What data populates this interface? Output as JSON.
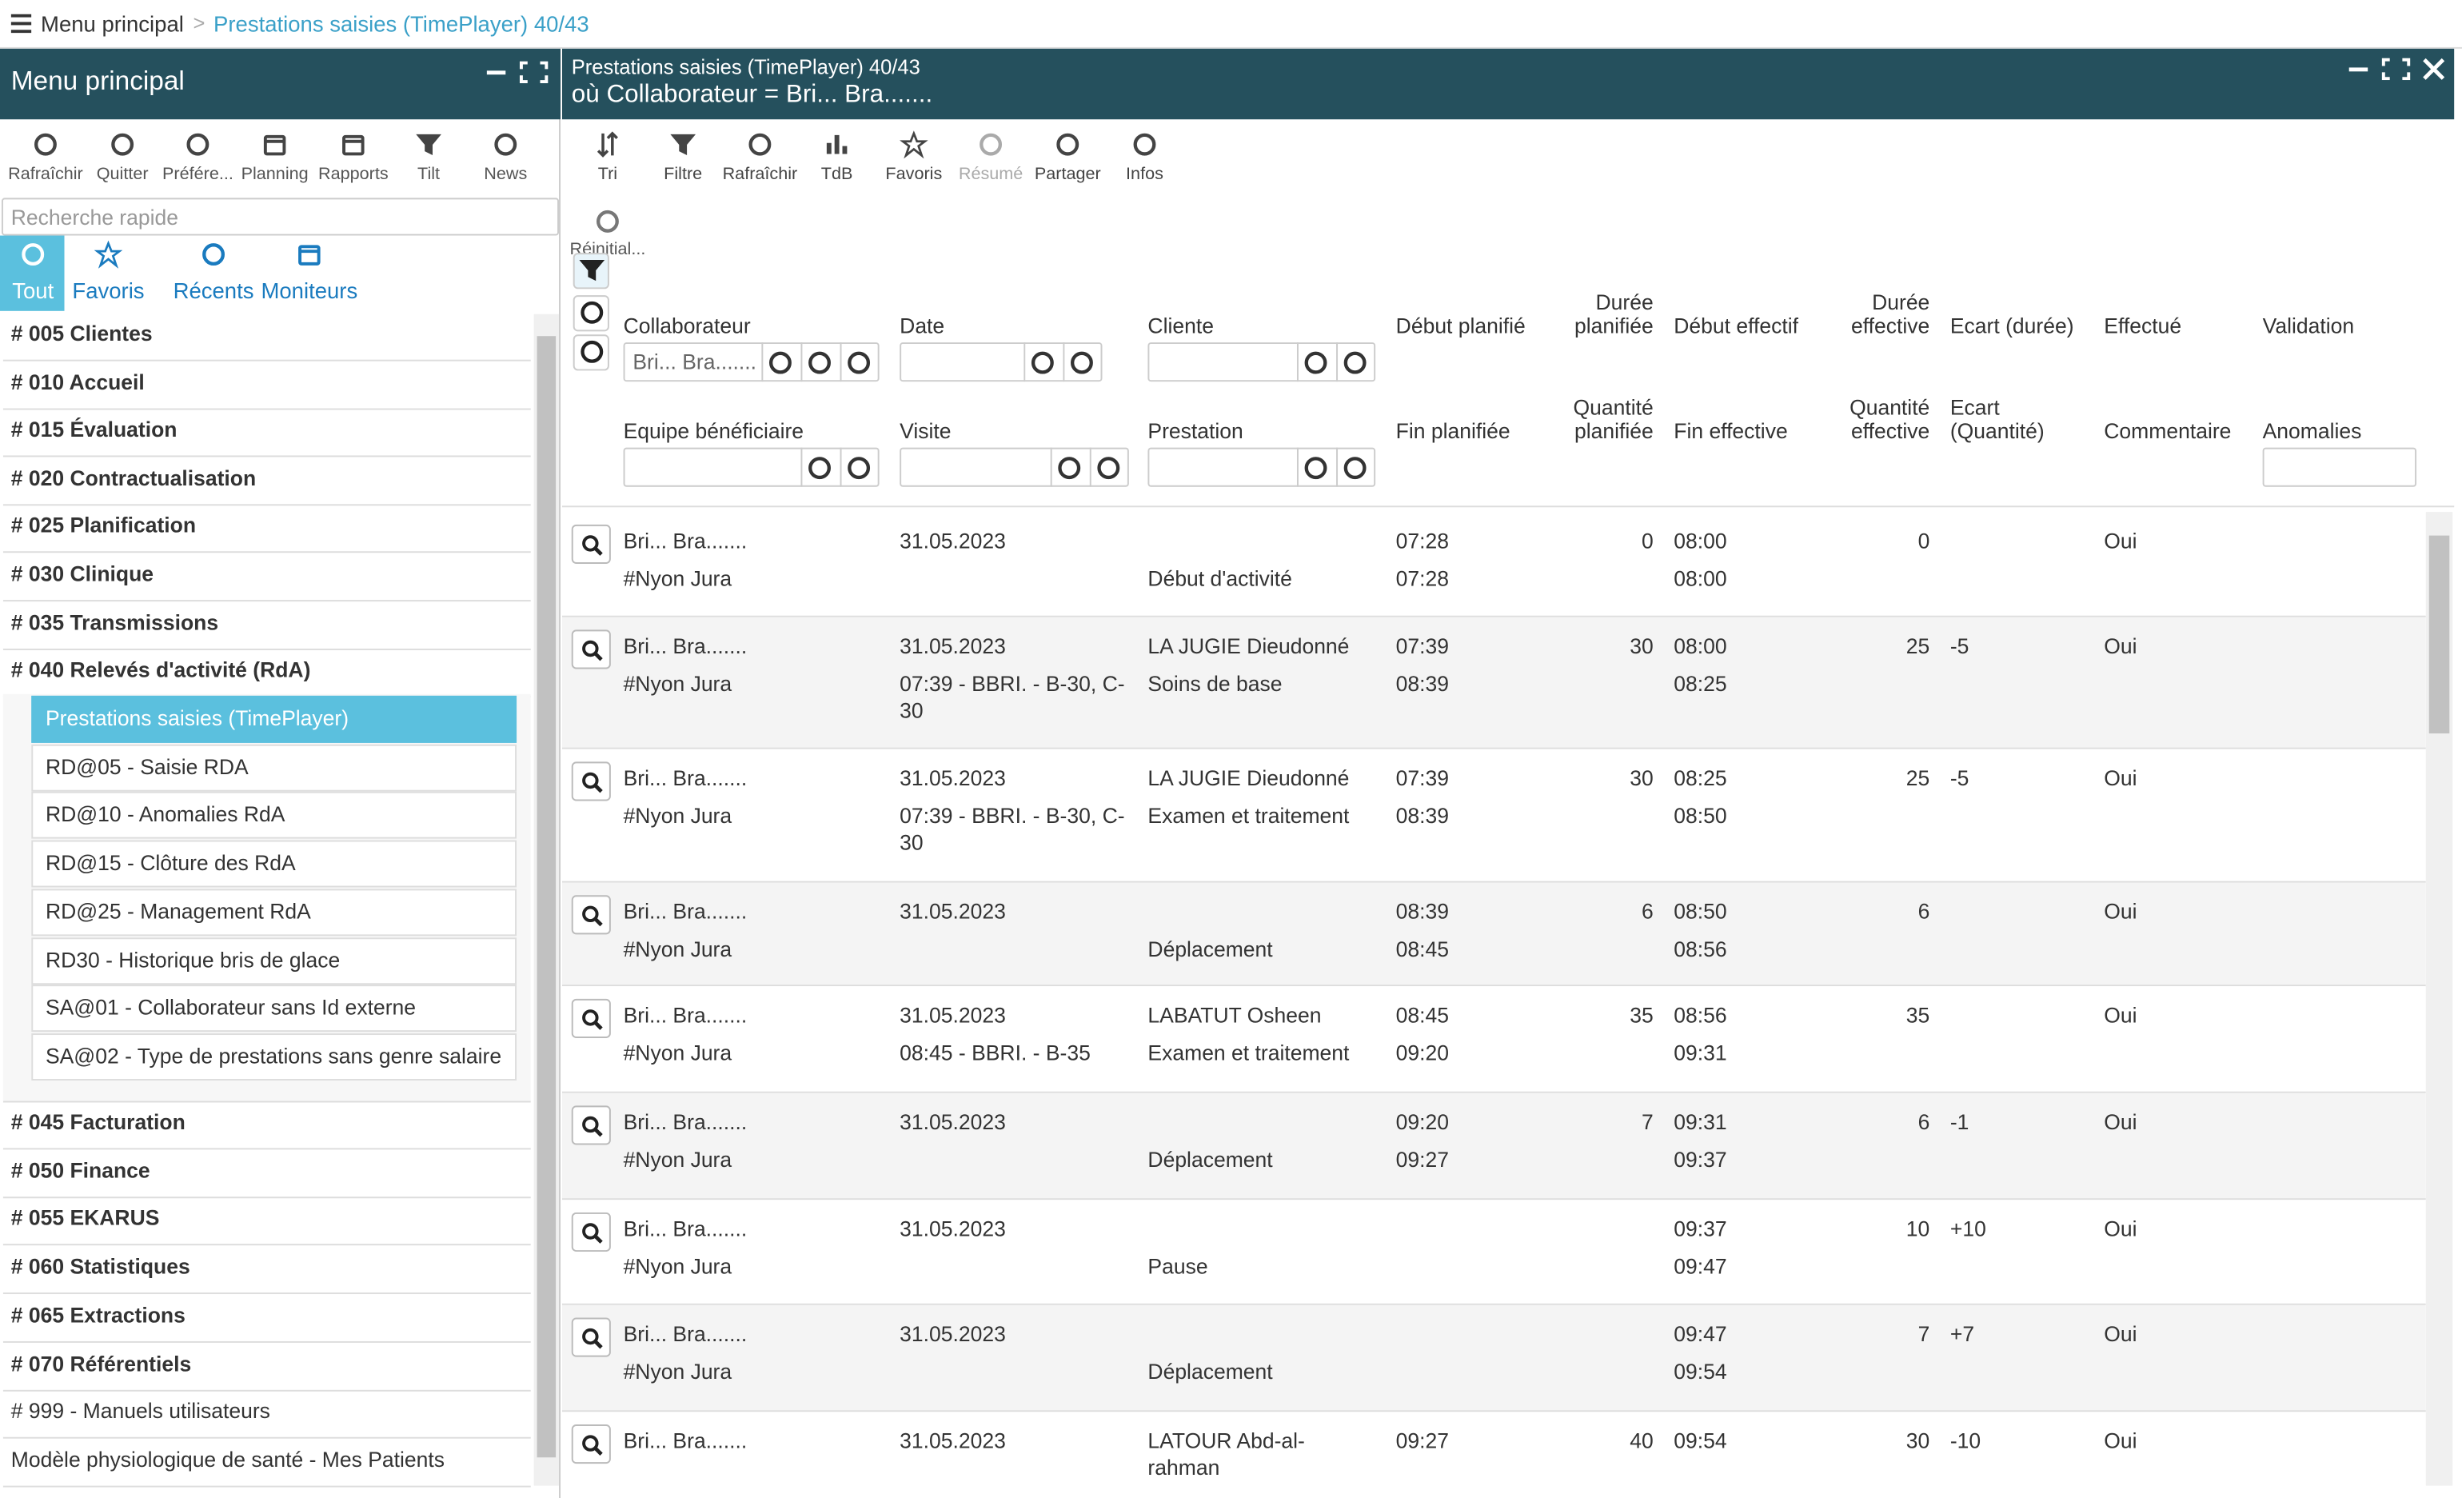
{
  "breadcrumb": {
    "root": "Menu principal",
    "separator": ">",
    "current": "Prestations saisies (TimePlayer) 40/43"
  },
  "menu_panel": {
    "title": "Menu principal",
    "toolbar": [
      "Rafraîchir",
      "Quitter",
      "Préfére...",
      "Planning",
      "Rapports",
      "Tilt",
      "News"
    ],
    "search_placeholder": "Recherche rapide",
    "tabs": [
      "Tout",
      "Favoris",
      "Récents",
      "Moniteurs"
    ],
    "sections": [
      "# 005 Clientes",
      "# 010 Accueil",
      "# 015 Évaluation",
      "# 020 Contractualisation",
      "# 025 Planification",
      "# 030 Clinique",
      "# 035 Transmissions",
      "# 040 Relevés d'activité (RdA)"
    ],
    "subitems": [
      "Prestations saisies (TimePlayer)",
      "RD@05 - Saisie RDA",
      "RD@10 - Anomalies RdA",
      "RD@15 - Clôture des RdA",
      "RD@25 - Management RdA",
      "RD30 - Historique bris de glace",
      "SA@01 - Collaborateur sans Id externe",
      "SA@02 - Type de prestations sans genre salaire"
    ],
    "more_sections": [
      "# 045 Facturation",
      "# 050 Finance",
      "# 055 EKARUS",
      "# 060 Statistiques",
      "# 065 Extractions",
      "# 070 Référentiels",
      "# 999 - Manuels utilisateurs",
      "Modèle physiologique de santé - Mes Patients"
    ]
  },
  "list_panel": {
    "title": "Prestations saisies (TimePlayer) 40/43",
    "filter_summary": "où Collaborateur = Bri... Bra.......",
    "toolbar": [
      "Tri",
      "Filtre",
      "Rafraîchir",
      "TdB",
      "Favoris",
      "Résumé",
      "Partager",
      "Infos"
    ],
    "reset": "Réinitial...",
    "header_top": [
      "Collaborateur",
      "Date",
      "Cliente",
      "Début planifié",
      "Durée planifiée",
      "Début effectif",
      "Durée effective",
      "Ecart (durée)",
      "Effectué",
      "Validation"
    ],
    "header_bottom": [
      "Equipe bénéficiaire",
      "Visite",
      "Prestation",
      "Fin planifiée",
      "Quantité planifiée",
      "Fin effective",
      "Quantité effective",
      "Ecart (Quantité)",
      "Commentaire",
      "Anomalies"
    ],
    "collaborateur_filter": "Bri... Bra.......",
    "rows": [
      {
        "top": [
          "Bri... Bra.......",
          "31.05.2023",
          null,
          "07:28",
          0,
          "08:00",
          0,
          null,
          "Oui",
          null
        ],
        "bottom": [
          "#Nyon Jura",
          null,
          "Début d'activité",
          "07:28",
          null,
          "08:00",
          null,
          null,
          null,
          null
        ]
      },
      {
        "top": [
          "Bri... Bra.......",
          "31.05.2023",
          "LA JUGIE Dieudonné",
          "07:39",
          30,
          "08:00",
          25,
          "-5",
          "Oui",
          null
        ],
        "bottom": [
          "#Nyon Jura",
          "07:39 - BBRI. - B-30, C-30",
          "Soins de base",
          "08:39",
          null,
          "08:25",
          null,
          null,
          null,
          null
        ]
      },
      {
        "top": [
          "Bri... Bra.......",
          "31.05.2023",
          "LA JUGIE Dieudonné",
          "07:39",
          30,
          "08:25",
          25,
          "-5",
          "Oui",
          null
        ],
        "bottom": [
          "#Nyon Jura",
          "07:39 - BBRI. - B-30, C-30",
          "Examen et traitement",
          "08:39",
          null,
          "08:50",
          null,
          null,
          null,
          null
        ]
      },
      {
        "top": [
          "Bri... Bra.......",
          "31.05.2023",
          null,
          "08:39",
          6,
          "08:50",
          6,
          null,
          "Oui",
          null
        ],
        "bottom": [
          "#Nyon Jura",
          null,
          "Déplacement",
          "08:45",
          null,
          "08:56",
          null,
          null,
          null,
          null
        ]
      },
      {
        "top": [
          "Bri... Bra.......",
          "31.05.2023",
          "LABATUT Osheen",
          "08:45",
          35,
          "08:56",
          35,
          null,
          "Oui",
          null
        ],
        "bottom": [
          "#Nyon Jura",
          "08:45 - BBRI. - B-35",
          "Examen et traitement",
          "09:20",
          null,
          "09:31",
          null,
          null,
          null,
          null
        ]
      },
      {
        "top": [
          "Bri... Bra.......",
          "31.05.2023",
          null,
          "09:20",
          7,
          "09:31",
          6,
          "-1",
          "Oui",
          null
        ],
        "bottom": [
          "#Nyon Jura",
          null,
          "Déplacement",
          "09:27",
          null,
          "09:37",
          null,
          null,
          null,
          null
        ]
      },
      {
        "top": [
          "Bri... Bra.......",
          "31.05.2023",
          null,
          null,
          null,
          "09:37",
          10,
          "+10",
          "Oui",
          null
        ],
        "bottom": [
          "#Nyon Jura",
          null,
          "Pause",
          null,
          null,
          "09:47",
          null,
          null,
          null,
          null
        ]
      },
      {
        "top": [
          "Bri... Bra.......",
          "31.05.2023",
          null,
          null,
          null,
          "09:47",
          7,
          "+7",
          "Oui",
          null
        ],
        "bottom": [
          "#Nyon Jura",
          null,
          "Déplacement",
          null,
          null,
          "09:54",
          null,
          null,
          null,
          null
        ]
      },
      {
        "top": [
          "Bri... Bra.......",
          "31.05.2023",
          "LATOUR Abd-al-rahman",
          "09:27",
          40,
          "09:54",
          30,
          "-10",
          "Oui",
          null
        ],
        "bottom": [
          null,
          null,
          null,
          null,
          null,
          null,
          null,
          null,
          null,
          null
        ]
      }
    ]
  }
}
